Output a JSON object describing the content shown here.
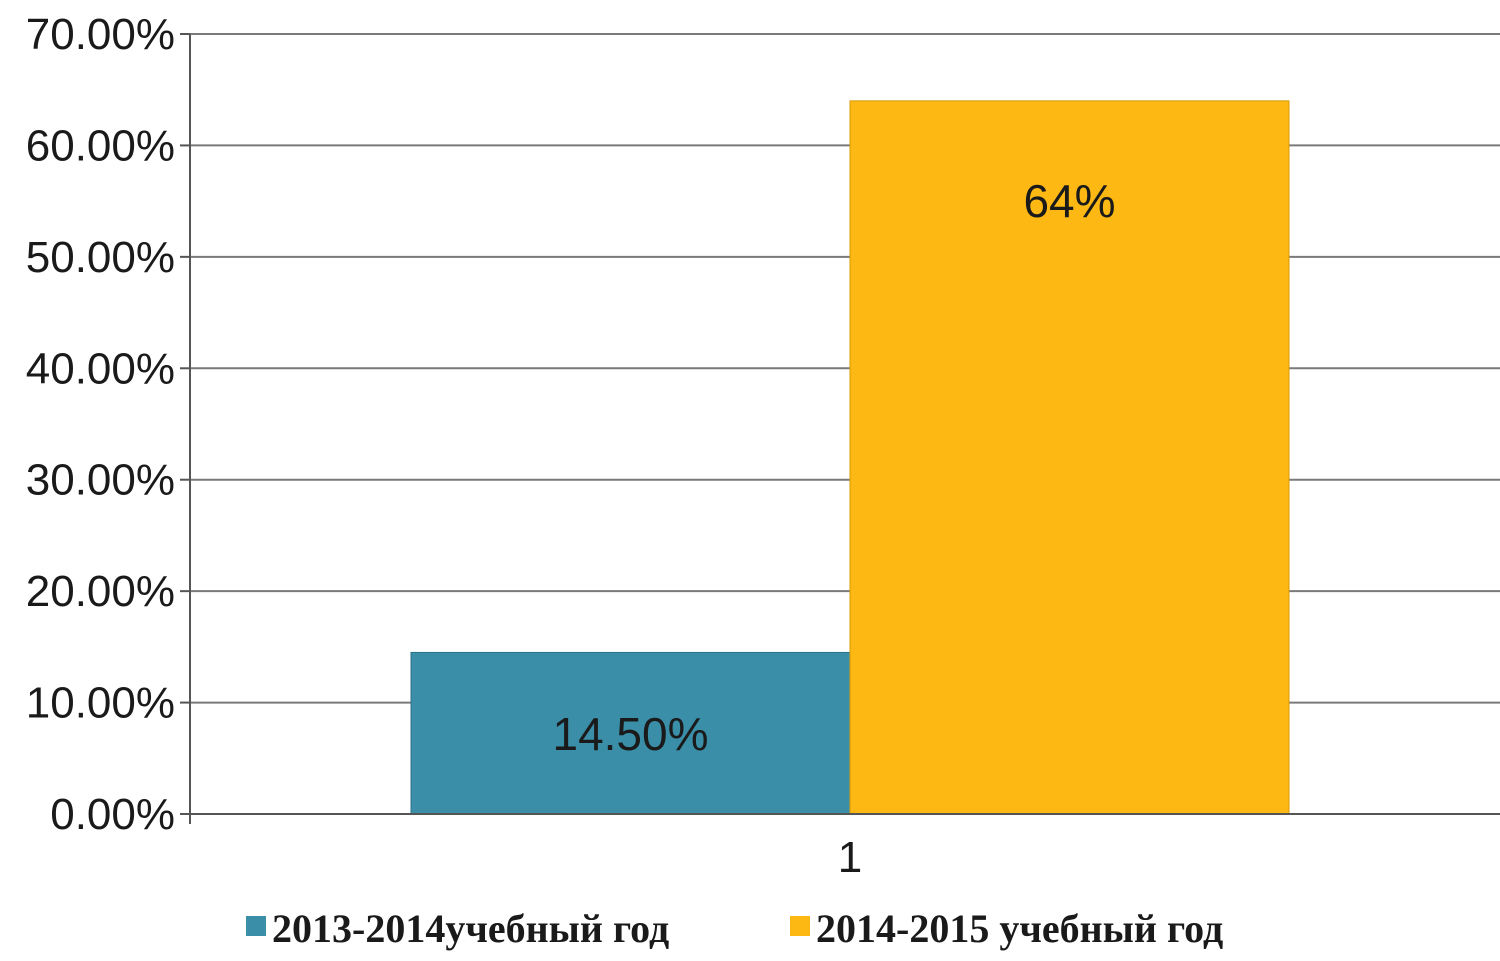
{
  "chart_data": {
    "type": "bar",
    "categories": [
      "1"
    ],
    "series": [
      {
        "name": "2013-2014учебный год",
        "values": [
          0.145
        ],
        "data_label": "14.50%",
        "color": "#3a8ea8"
      },
      {
        "name": "2014-2015 учебный год",
        "values": [
          0.64
        ],
        "data_label": "64%",
        "color": "#fdb813"
      }
    ],
    "ylim": [
      0,
      0.7
    ],
    "yticks": [
      {
        "value": 0.0,
        "label": "0.00%"
      },
      {
        "value": 0.1,
        "label": "10.00%"
      },
      {
        "value": 0.2,
        "label": "20.00%"
      },
      {
        "value": 0.3,
        "label": "30.00%"
      },
      {
        "value": 0.4,
        "label": "40.00%"
      },
      {
        "value": 0.5,
        "label": "50.00%"
      },
      {
        "value": 0.6,
        "label": "60.00%"
      },
      {
        "value": 0.7,
        "label": "70.00%"
      }
    ],
    "grid": true,
    "legend_position": "bottom",
    "title": "",
    "xlabel": "",
    "ylabel": ""
  }
}
